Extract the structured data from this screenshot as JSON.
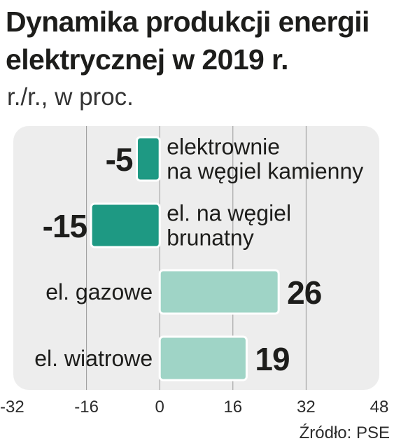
{
  "header": {
    "title": "Dynamika produkcji energii elektrycznej  w 2019 r.",
    "subtitle": "r./r., w proc."
  },
  "footer": {
    "source": "Źródło: PSE"
  },
  "colors": {
    "panel": "#ededed",
    "dark_bar": "#1e9983",
    "light_bar": "#9fd4c6",
    "grid": "#9a9a9a",
    "text": "#1d1d1b"
  },
  "chart_data": {
    "type": "bar",
    "orientation": "horizontal",
    "title": "Dynamika produkcji energii elektrycznej  w 2019 r.",
    "subtitle": "r./r., w proc.",
    "xlabel": "",
    "ylabel": "",
    "xlim": [
      -32,
      48
    ],
    "xticks": [
      "-32",
      "-16",
      "0",
      "16",
      "32",
      "48"
    ],
    "grid": true,
    "legend": "none",
    "categories": [
      [
        "elektrownie",
        "na węgiel kamienny"
      ],
      [
        "el. na węgiel",
        "brunatny"
      ],
      [
        "el. gazowe"
      ],
      [
        "el. wiatrowe"
      ]
    ],
    "values": [
      -5,
      -15,
      26,
      19
    ],
    "value_labels": [
      "-5",
      "-15",
      "26",
      "19"
    ]
  }
}
